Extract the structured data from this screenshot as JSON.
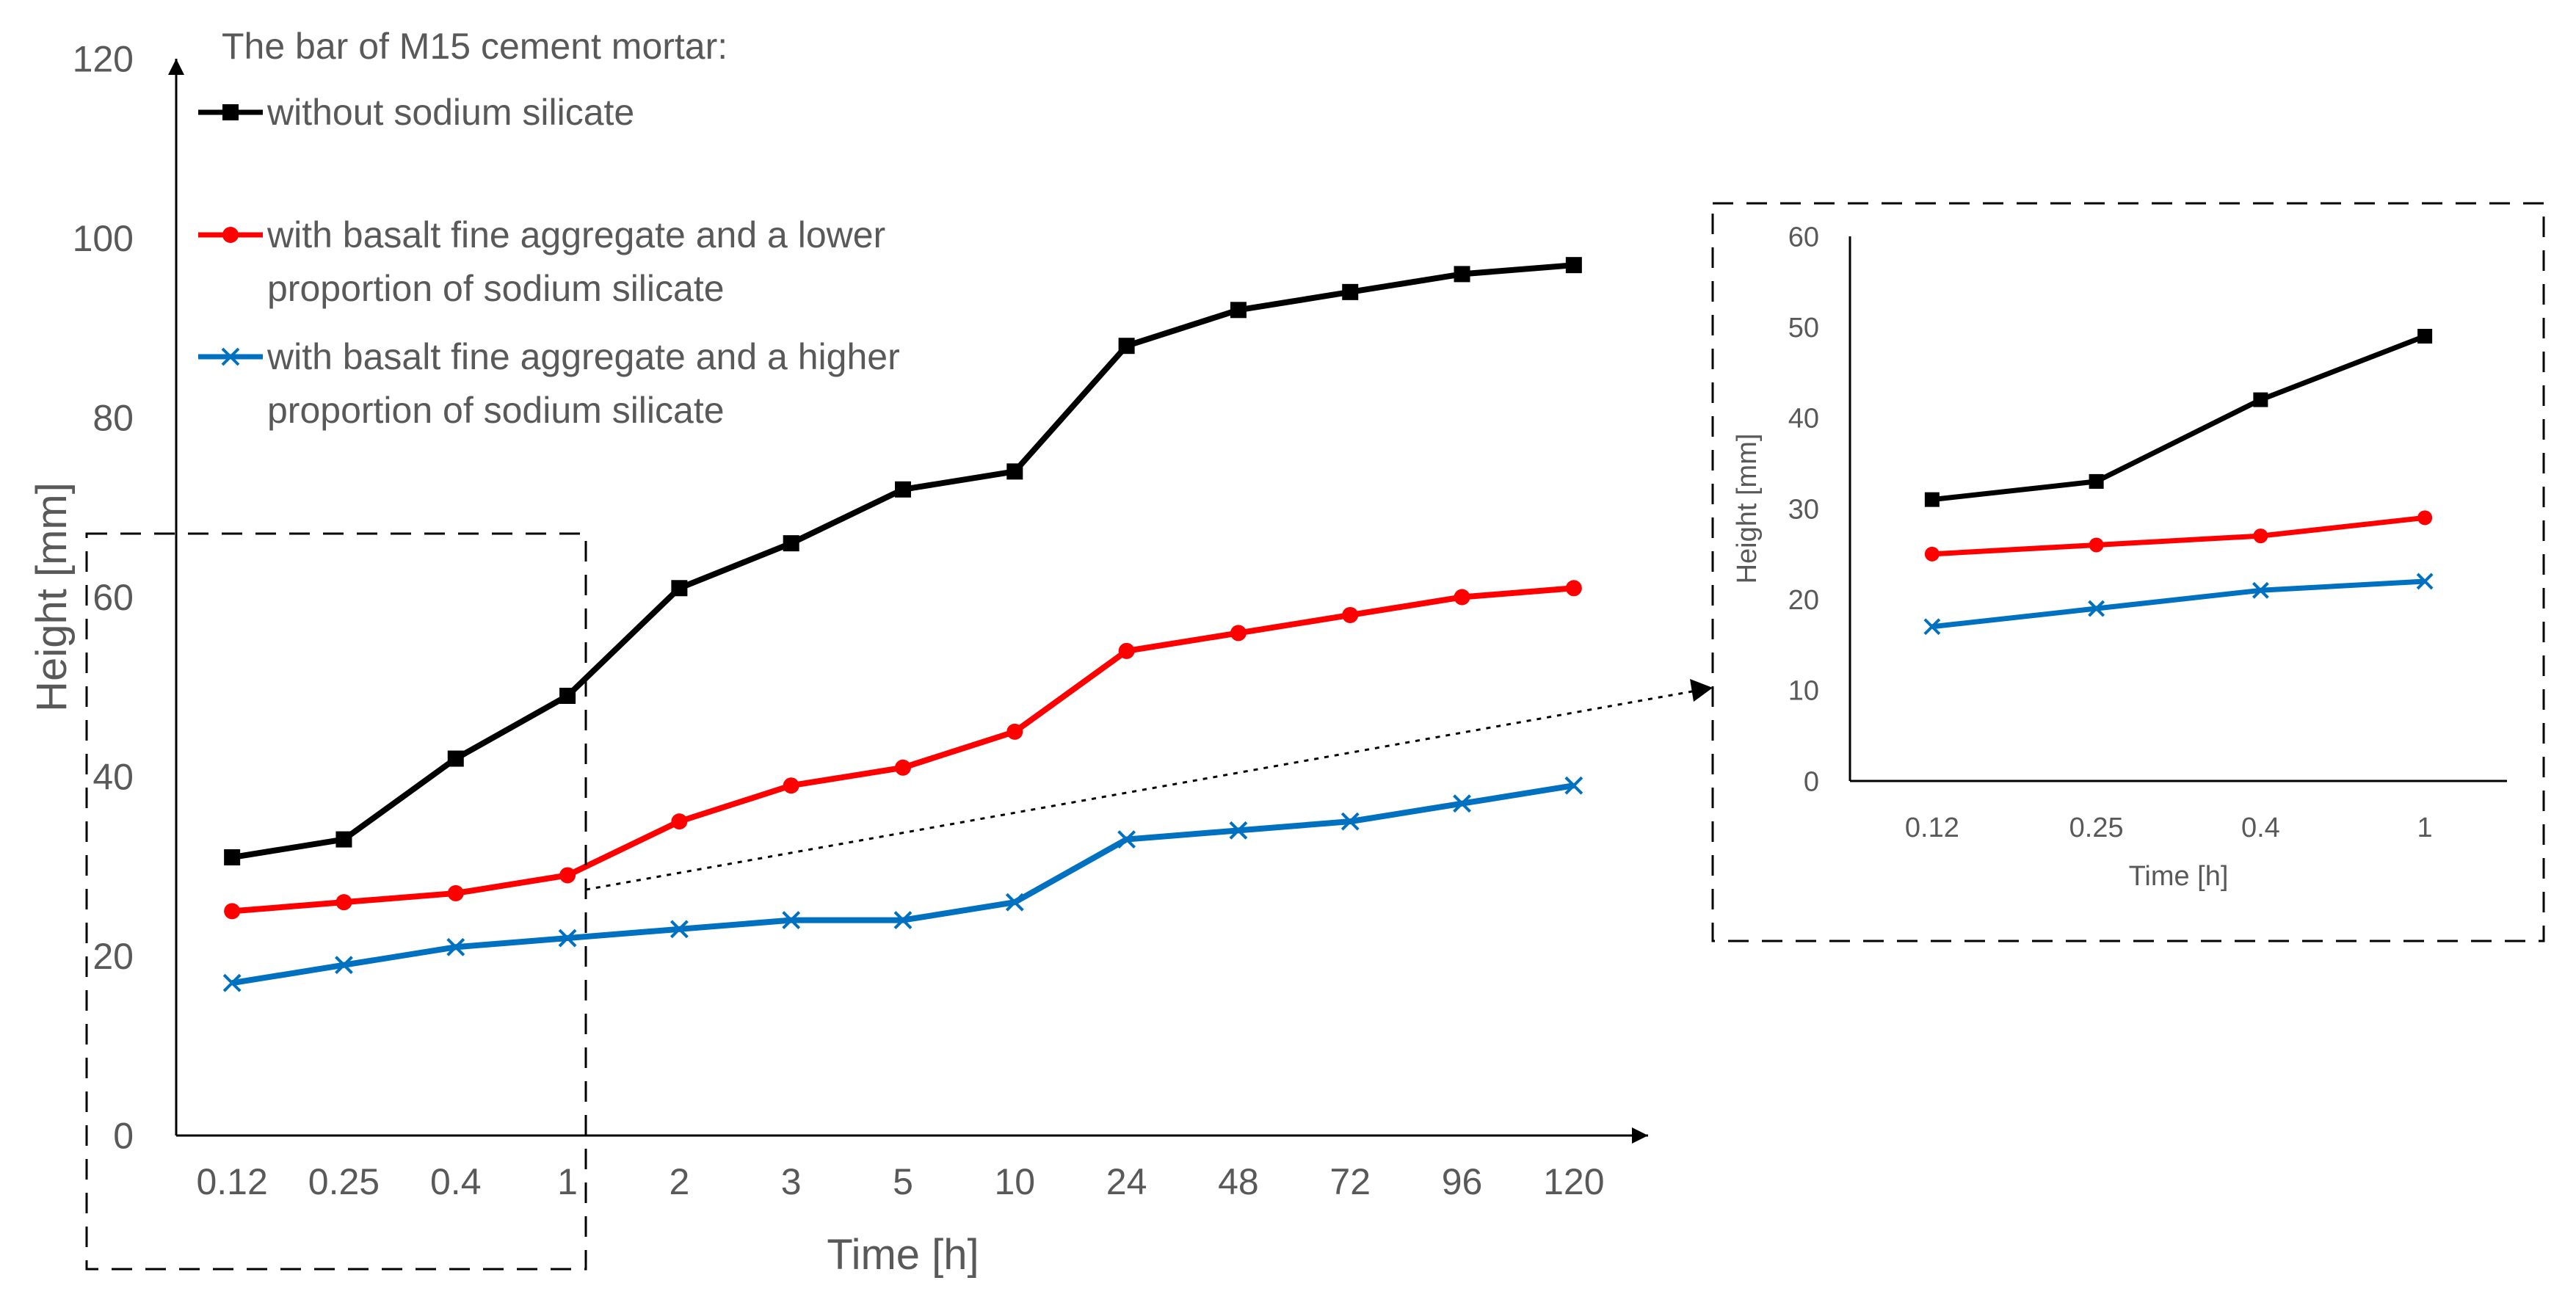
{
  "chart_data": [
    {
      "type": "line",
      "title": "The bar of M15 cement mortar:",
      "xlabel": "Time [h]",
      "ylabel": "Height [mm]",
      "categories": [
        "0.12",
        "0.25",
        "0.4",
        "1",
        "2",
        "3",
        "5",
        "10",
        "24",
        "48",
        "72",
        "96",
        "120"
      ],
      "yticks": [
        "0",
        "20",
        "40",
        "60",
        "80",
        "100",
        "120"
      ],
      "ylim": [
        0,
        120
      ],
      "legend_position": "top-left",
      "series": [
        {
          "name": "without sodium silicate",
          "name_lines": [
            "without sodium silicate"
          ],
          "color": "#000000",
          "marker": "square",
          "values": [
            31,
            33,
            42,
            49,
            61,
            66,
            72,
            74,
            88,
            92,
            94,
            96,
            97
          ]
        },
        {
          "name": "with basalt fine aggregate and a lower proportion of sodium silicate",
          "name_lines": [
            "with basalt fine aggregate and a lower",
            "proportion of sodium silicate"
          ],
          "color": "#ff0000",
          "marker": "circle",
          "values": [
            25,
            26,
            27,
            29,
            35,
            39,
            41,
            45,
            54,
            56,
            58,
            60,
            61
          ]
        },
        {
          "name": "with basalt fine aggregate and a higher proportion of sodium silicate",
          "name_lines": [
            "with basalt fine aggregate and a higher",
            "proportion of sodium silicate"
          ],
          "color": "#0070c0",
          "marker": "x",
          "values": [
            17,
            19,
            21,
            22,
            23,
            24,
            24,
            26,
            33,
            34,
            35,
            37,
            39
          ]
        }
      ]
    },
    {
      "type": "line",
      "title": "",
      "xlabel": "Time [h]",
      "ylabel": "Height [mm]",
      "categories": [
        "0.12",
        "0.25",
        "0.4",
        "1"
      ],
      "yticks": [
        "0",
        "10",
        "20",
        "30",
        "40",
        "50",
        "60"
      ],
      "ylim": [
        0,
        60
      ],
      "series": [
        {
          "name": "without sodium silicate",
          "color": "#000000",
          "marker": "square",
          "values": [
            31,
            33,
            42,
            49
          ]
        },
        {
          "name": "with basalt fine aggregate and a lower proportion of sodium silicate",
          "color": "#ff0000",
          "marker": "circle",
          "values": [
            25,
            26,
            27,
            29
          ]
        },
        {
          "name": "with basalt fine aggregate and a higher proportion of sodium silicate",
          "color": "#0070c0",
          "marker": "x",
          "values": [
            17,
            19,
            21,
            22
          ]
        }
      ]
    }
  ]
}
